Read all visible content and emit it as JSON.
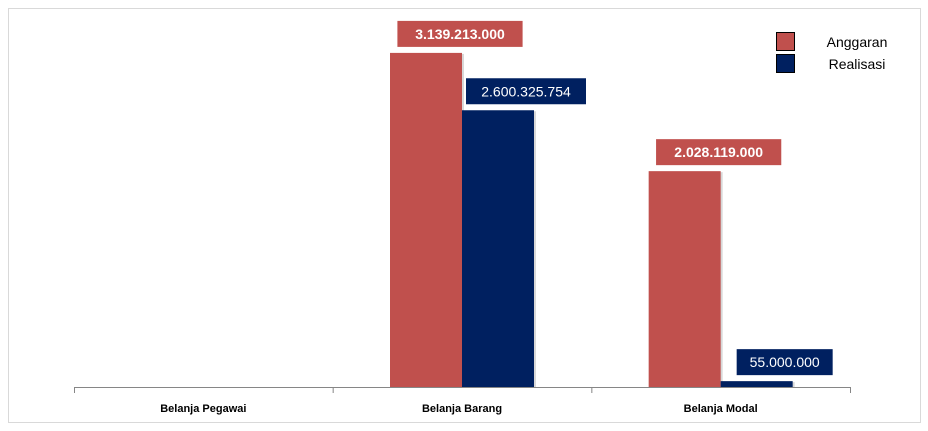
{
  "chart_data": {
    "type": "bar",
    "categories": [
      "Belanja Pegawai",
      "Belanja Barang",
      "Belanja Modal"
    ],
    "series": [
      {
        "name": "Anggaran",
        "color": "#C0504D",
        "values": [
          0,
          3139213000,
          2028119000
        ],
        "labels": [
          "",
          "3.139.213.000",
          "2.028.119.000"
        ],
        "label_bold": true
      },
      {
        "name": "Realisasi",
        "color": "#002060",
        "values": [
          0,
          2600325754,
          55000000
        ],
        "labels": [
          "",
          "2.600.325.754",
          "55.000.000"
        ],
        "label_bold": false
      }
    ],
    "ylim": [
      0,
      3500000000
    ],
    "grid": false,
    "legend": "top-right"
  }
}
